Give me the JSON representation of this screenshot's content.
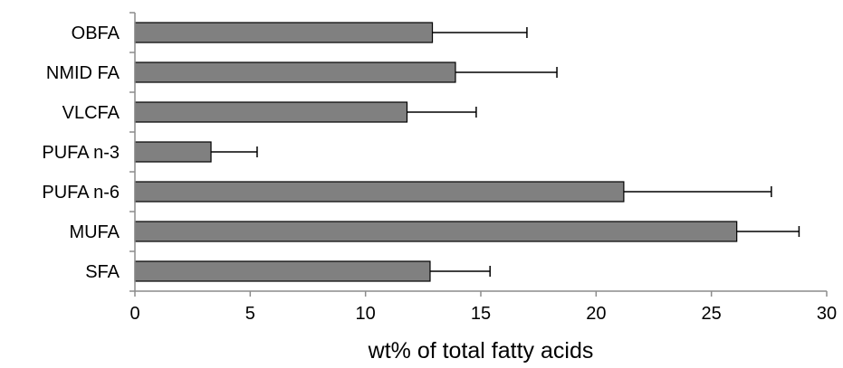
{
  "chart_data": {
    "type": "bar",
    "orientation": "horizontal",
    "categories": [
      "OBFA",
      "NMID FA",
      "VLCFA",
      "PUFA n-3",
      "PUFA n-6",
      "MUFA",
      "SFA"
    ],
    "values": [
      12.9,
      13.9,
      11.8,
      3.3,
      21.2,
      26.1,
      12.8
    ],
    "errors": [
      4.1,
      4.4,
      3.0,
      2.0,
      6.4,
      2.7,
      2.6
    ],
    "xlabel": "wt% of total fatty acids",
    "ylabel": "",
    "xlim": [
      0,
      30
    ],
    "xticks": [
      0,
      5,
      10,
      15,
      20,
      25,
      30
    ],
    "grid": false,
    "legend": "none",
    "colors": {
      "bar_fill": "#808080",
      "bar_stroke": "#000000",
      "axis": "#8c8c8c",
      "error_bar": "#000000",
      "text": "#000000"
    }
  }
}
